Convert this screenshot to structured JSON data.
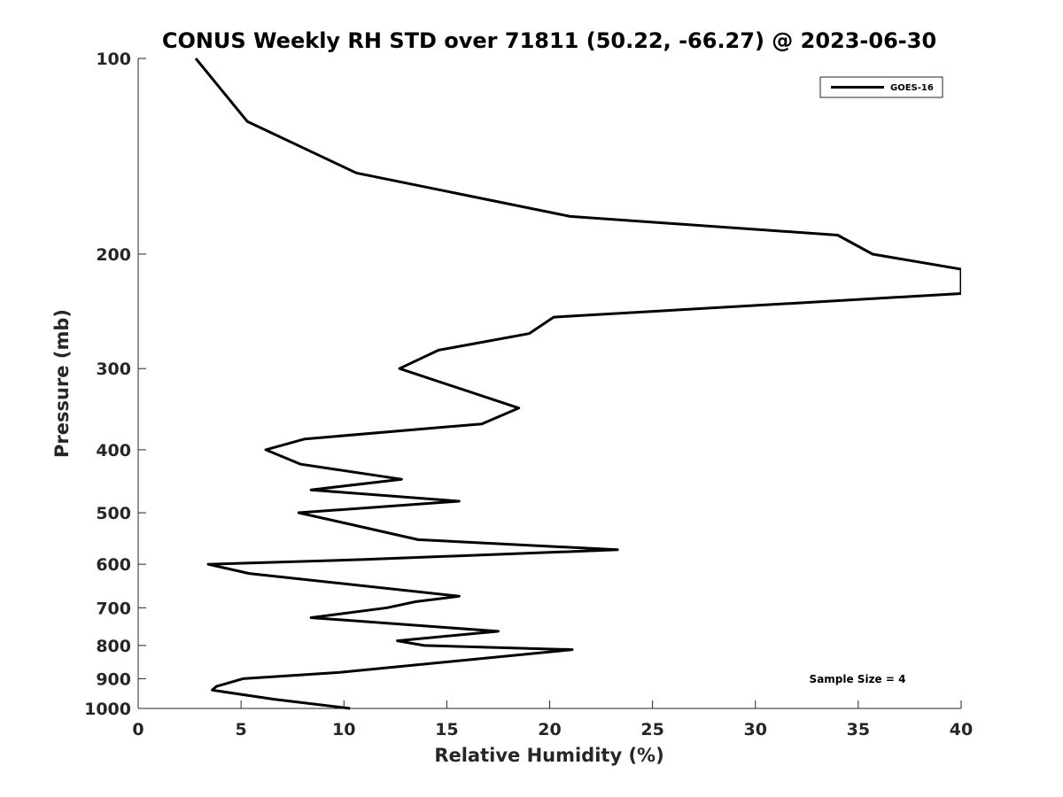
{
  "chart_data": {
    "type": "line",
    "title": "CONUS Weekly RH STD over 71811 (50.22, -66.27) @ 2023-06-30",
    "xlabel": "Relative Humidity (%)",
    "ylabel": "Pressure (mb)",
    "xlim": [
      0,
      40
    ],
    "ylim": [
      100,
      1000
    ],
    "y_scale": "log",
    "y_reversed": true,
    "grid": false,
    "x_ticks": [
      0,
      5,
      10,
      15,
      20,
      25,
      30,
      35,
      40
    ],
    "x_tick_labels": [
      "0",
      "5",
      "10",
      "15",
      "20",
      "25",
      "30",
      "35",
      "40"
    ],
    "y_ticks": [
      100,
      200,
      300,
      400,
      500,
      600,
      700,
      800,
      900,
      1000
    ],
    "y_tick_labels": [
      "100",
      "200",
      "300",
      "400",
      "500",
      "600",
      "700",
      "800",
      "900",
      "1000"
    ],
    "legend": {
      "position": "top-right",
      "entries": [
        "GOES-16"
      ]
    },
    "annotation": "Sample Size = 4",
    "series": [
      {
        "name": "GOES-16",
        "color": "#000000",
        "points": [
          [
            2.8,
            100
          ],
          [
            5.3,
            125
          ],
          [
            10.6,
            150
          ],
          [
            21.0,
            175
          ],
          [
            34.0,
            187
          ],
          [
            35.7,
            200
          ],
          [
            40.0,
            211
          ],
          [
            40.0,
            230
          ],
          [
            20.2,
            250
          ],
          [
            19.0,
            265
          ],
          [
            14.6,
            281
          ],
          [
            12.7,
            300
          ],
          [
            18.5,
            345
          ],
          [
            16.7,
            365
          ],
          [
            8.1,
            385
          ],
          [
            6.2,
            400
          ],
          [
            7.9,
            421
          ],
          [
            12.8,
            444
          ],
          [
            8.4,
            461
          ],
          [
            15.6,
            480
          ],
          [
            7.8,
            500
          ],
          [
            10.2,
            520
          ],
          [
            13.6,
            550
          ],
          [
            23.3,
            570
          ],
          [
            11.0,
            590
          ],
          [
            3.4,
            600
          ],
          [
            5.4,
            620
          ],
          [
            15.6,
            672
          ],
          [
            13.5,
            685
          ],
          [
            12.1,
            700
          ],
          [
            8.4,
            725
          ],
          [
            17.5,
            761
          ],
          [
            12.6,
            787
          ],
          [
            13.9,
            800
          ],
          [
            21.1,
            812
          ],
          [
            9.8,
            880
          ],
          [
            5.1,
            900
          ],
          [
            3.8,
            925
          ],
          [
            3.6,
            937
          ],
          [
            6.6,
            968
          ],
          [
            10.3,
            1000
          ]
        ]
      }
    ]
  }
}
